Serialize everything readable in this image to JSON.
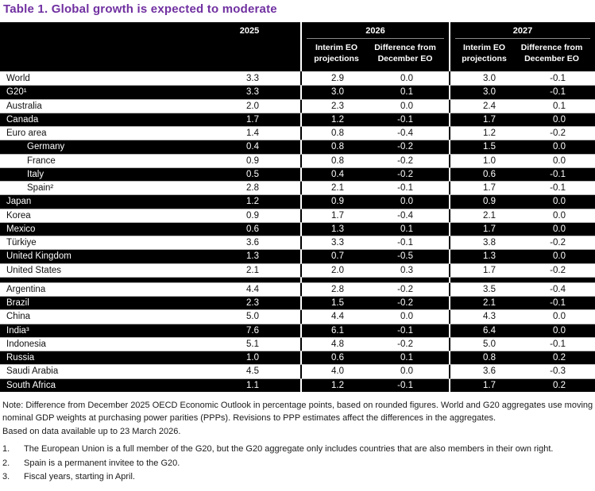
{
  "title": "Table 1. Global growth is expected to moderate",
  "accent_color": "#7030a0",
  "header": {
    "col_2025": "2025",
    "group_2026": "2026",
    "group_2027": "2027",
    "sub_projections": "Interim EO projections",
    "sub_difference": "Difference from December EO"
  },
  "table": {
    "rows": [
      {
        "name": "World",
        "v2025": "3.3",
        "p26": "2.9",
        "d26": "0.0",
        "p27": "3.0",
        "d27": "-0.1",
        "dark": false,
        "indent": false
      },
      {
        "name": "G20¹",
        "v2025": "3.3",
        "p26": "3.0",
        "d26": "0.1",
        "p27": "3.0",
        "d27": "-0.1",
        "dark": true,
        "indent": false
      },
      {
        "name": "Australia",
        "v2025": "2.0",
        "p26": "2.3",
        "d26": "0.0",
        "p27": "2.4",
        "d27": "0.1",
        "dark": false,
        "indent": false
      },
      {
        "name": "Canada",
        "v2025": "1.7",
        "p26": "1.2",
        "d26": "-0.1",
        "p27": "1.7",
        "d27": "0.0",
        "dark": true,
        "indent": false
      },
      {
        "name": "Euro area",
        "v2025": "1.4",
        "p26": "0.8",
        "d26": "-0.4",
        "p27": "1.2",
        "d27": "-0.2",
        "dark": false,
        "indent": false
      },
      {
        "name": "Germany",
        "v2025": "0.4",
        "p26": "0.8",
        "d26": "-0.2",
        "p27": "1.5",
        "d27": "0.0",
        "dark": true,
        "indent": true
      },
      {
        "name": "France",
        "v2025": "0.9",
        "p26": "0.8",
        "d26": "-0.2",
        "p27": "1.0",
        "d27": "0.0",
        "dark": false,
        "indent": true
      },
      {
        "name": "Italy",
        "v2025": "0.5",
        "p26": "0.4",
        "d26": "-0.2",
        "p27": "0.6",
        "d27": "-0.1",
        "dark": true,
        "indent": true
      },
      {
        "name": "Spain²",
        "v2025": "2.8",
        "p26": "2.1",
        "d26": "-0.1",
        "p27": "1.7",
        "d27": "-0.1",
        "dark": false,
        "indent": true
      },
      {
        "name": "Japan",
        "v2025": "1.2",
        "p26": "0.9",
        "d26": "0.0",
        "p27": "0.9",
        "d27": "0.0",
        "dark": true,
        "indent": false
      },
      {
        "name": "Korea",
        "v2025": "0.9",
        "p26": "1.7",
        "d26": "-0.4",
        "p27": "2.1",
        "d27": "0.0",
        "dark": false,
        "indent": false
      },
      {
        "name": "Mexico",
        "v2025": "0.6",
        "p26": "1.3",
        "d26": "0.1",
        "p27": "1.7",
        "d27": "0.0",
        "dark": true,
        "indent": false
      },
      {
        "name": "Türkiye",
        "v2025": "3.6",
        "p26": "3.3",
        "d26": "-0.1",
        "p27": "3.8",
        "d27": "-0.2",
        "dark": false,
        "indent": false
      },
      {
        "name": "United Kingdom",
        "v2025": "1.3",
        "p26": "0.7",
        "d26": "-0.5",
        "p27": "1.3",
        "d27": "0.0",
        "dark": true,
        "indent": false
      },
      {
        "name": "United States",
        "v2025": "2.1",
        "p26": "2.0",
        "d26": "0.3",
        "p27": "1.7",
        "d27": "-0.2",
        "dark": false,
        "indent": false
      },
      {
        "name": "",
        "v2025": "",
        "p26": "",
        "d26": "",
        "p27": "",
        "d27": "",
        "dark": true,
        "indent": false,
        "spacer": true
      },
      {
        "name": "Argentina",
        "v2025": "4.4",
        "p26": "2.8",
        "d26": "-0.2",
        "p27": "3.5",
        "d27": "-0.4",
        "dark": false,
        "indent": false
      },
      {
        "name": "Brazil",
        "v2025": "2.3",
        "p26": "1.5",
        "d26": "-0.2",
        "p27": "2.1",
        "d27": "-0.1",
        "dark": true,
        "indent": false
      },
      {
        "name": "China",
        "v2025": "5.0",
        "p26": "4.4",
        "d26": "0.0",
        "p27": "4.3",
        "d27": "0.0",
        "dark": false,
        "indent": false
      },
      {
        "name": "India³",
        "v2025": "7.6",
        "p26": "6.1",
        "d26": "-0.1",
        "p27": "6.4",
        "d27": "0.0",
        "dark": true,
        "indent": false
      },
      {
        "name": "Indonesia",
        "v2025": "5.1",
        "p26": "4.8",
        "d26": "-0.2",
        "p27": "5.0",
        "d27": "-0.1",
        "dark": false,
        "indent": false
      },
      {
        "name": "Russia",
        "v2025": "1.0",
        "p26": "0.6",
        "d26": "0.1",
        "p27": "0.8",
        "d27": "0.2",
        "dark": true,
        "indent": false
      },
      {
        "name": "Saudi Arabia",
        "v2025": "4.5",
        "p26": "4.0",
        "d26": "0.0",
        "p27": "3.6",
        "d27": "-0.3",
        "dark": false,
        "indent": false
      },
      {
        "name": "South Africa",
        "v2025": "1.1",
        "p26": "1.2",
        "d26": "-0.1",
        "p27": "1.7",
        "d27": "0.2",
        "dark": true,
        "indent": false
      }
    ]
  },
  "notes": {
    "main": "Note: Difference from December 2025 OECD Economic Outlook in percentage points, based on rounded figures. World and G20 aggregates use moving nominal GDP weights at purchasing power parities (PPPs). Revisions to PPP estimates affect the differences in the aggregates.",
    "cutoff": "Based on data available up to 23 March 2026.",
    "footnotes": [
      {
        "num": "1.",
        "text": "The European Union is a full member of the G20, but the G20 aggregate only includes countries that are also members in their own right."
      },
      {
        "num": "2.",
        "text": "Spain is a permanent invitee to the G20."
      },
      {
        "num": "3.",
        "text": "Fiscal years, starting in April."
      }
    ]
  }
}
